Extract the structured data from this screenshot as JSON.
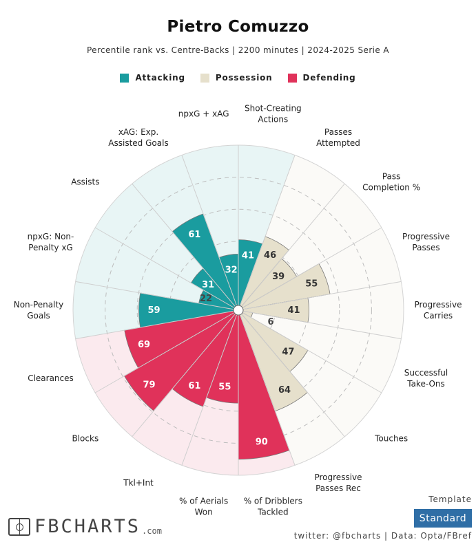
{
  "header": {
    "title": "Pietro Comuzzo",
    "subtitle": "Percentile rank vs. Centre-Backs | 2200 minutes | 2024-2025 Serie A"
  },
  "legend": [
    {
      "label": "Attacking",
      "color": "#1a9c9f"
    },
    {
      "label": "Possession",
      "color": "#e6e0cc"
    },
    {
      "label": "Defending",
      "color": "#e0325a"
    }
  ],
  "chart_data": {
    "type": "radar-bar",
    "title": "Pietro Comuzzo",
    "scale": [
      0,
      100
    ],
    "rings": [
      20,
      40,
      60,
      80,
      100
    ],
    "categories": [
      {
        "label": "Shot-Creating\nActions",
        "value": 41,
        "group": "Attacking"
      },
      {
        "label": "Passes\nAttempted",
        "value": 46,
        "group": "Possession"
      },
      {
        "label": "Pass\nCompletion %",
        "value": 39,
        "group": "Possession"
      },
      {
        "label": "Progressive\nPasses",
        "value": 55,
        "group": "Possession"
      },
      {
        "label": "Progressive\nCarries",
        "value": 41,
        "group": "Possession"
      },
      {
        "label": "Successful\nTake-Ons",
        "value": 6,
        "group": "Possession"
      },
      {
        "label": "Touches",
        "value": 47,
        "group": "Possession"
      },
      {
        "label": "Progressive\nPasses Rec",
        "value": 64,
        "group": "Possession"
      },
      {
        "label": "% of Dribblers\nTackled",
        "value": 90,
        "group": "Defending"
      },
      {
        "label": "% of Aerials\nWon",
        "value": 55,
        "group": "Defending"
      },
      {
        "label": "Tkl+Int",
        "value": 61,
        "group": "Defending"
      },
      {
        "label": "Blocks",
        "value": 79,
        "group": "Defending"
      },
      {
        "label": "Clearances",
        "value": 69,
        "group": "Defending"
      },
      {
        "label": "Non-Penalty\nGoals",
        "value": 59,
        "group": "Attacking"
      },
      {
        "label": "npxG: Non-\nPenalty xG",
        "value": 22,
        "group": "Attacking"
      },
      {
        "label": "Assists",
        "value": 31,
        "group": "Attacking"
      },
      {
        "label": "xAG: Exp.\nAssisted Goals",
        "value": 61,
        "group": "Attacking"
      },
      {
        "label": "npxG + xAG",
        "value": 32,
        "group": "Attacking"
      }
    ],
    "group_colors": {
      "Attacking": {
        "bar": "#1a9c9f",
        "bg": "#e8f5f5",
        "label": "#ffffff"
      },
      "Possession": {
        "bar": "#e6e0cc",
        "bg": "#fbfaf7",
        "label": "#333333"
      },
      "Defending": {
        "bar": "#e0325a",
        "bg": "#fbeaee",
        "label": "#ffffff"
      }
    }
  },
  "footer": {
    "logo_text": "FBCHARTS",
    "logo_suffix": ".com",
    "template_label": "Template",
    "template_value": "Standard",
    "credits": "twitter: @fbcharts | Data: Opta/FBref"
  }
}
